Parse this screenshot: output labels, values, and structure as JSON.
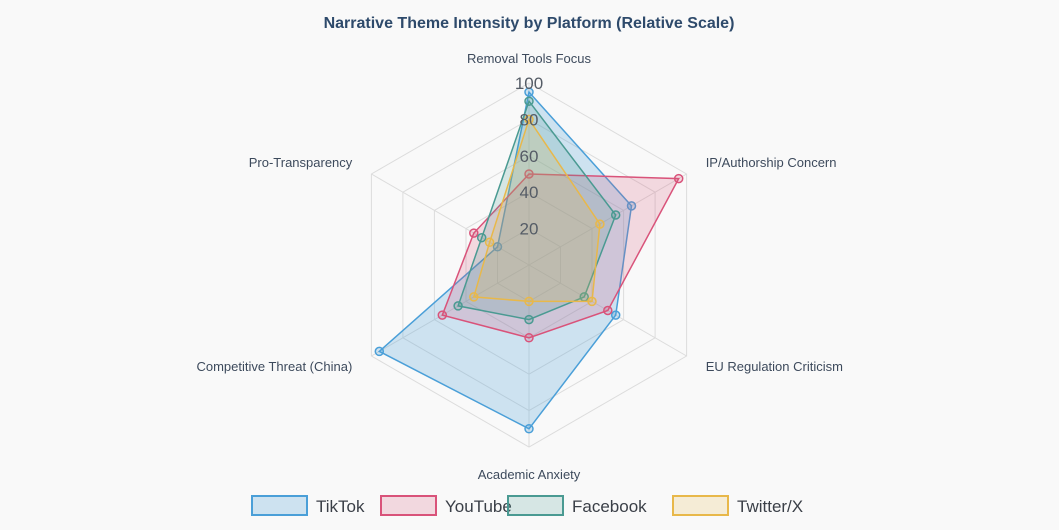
{
  "chart_data": {
    "type": "radar",
    "title": "Narrative Theme Intensity by Platform (Relative Scale)",
    "axes": [
      "Removal Tools Focus",
      "IP/Authorship Concern",
      "EU Regulation Criticism",
      "Academic Anxiety",
      "Competitive Threat (China)",
      "Pro-Transparency"
    ],
    "rlim": [
      0,
      100
    ],
    "ticks": [
      20,
      40,
      60,
      80,
      100
    ],
    "series": [
      {
        "name": "TikTok",
        "values": [
          95,
          65,
          55,
          90,
          95,
          20
        ],
        "color": "#4a9fd8",
        "fill": "rgba(74,159,216,0.25)"
      },
      {
        "name": "YouTube",
        "values": [
          50,
          95,
          50,
          40,
          55,
          35
        ],
        "color": "#d9537a",
        "fill": "rgba(217,83,122,0.20)"
      },
      {
        "name": "Facebook",
        "values": [
          90,
          55,
          35,
          30,
          45,
          30
        ],
        "color": "#4a9a92",
        "fill": "rgba(74,154,146,0.20)"
      },
      {
        "name": "Twitter/X",
        "values": [
          80,
          45,
          40,
          20,
          35,
          25
        ],
        "color": "#e8b84a",
        "fill": "rgba(232,184,74,0.20)"
      }
    ],
    "legend_position": "bottom",
    "grid": true
  }
}
